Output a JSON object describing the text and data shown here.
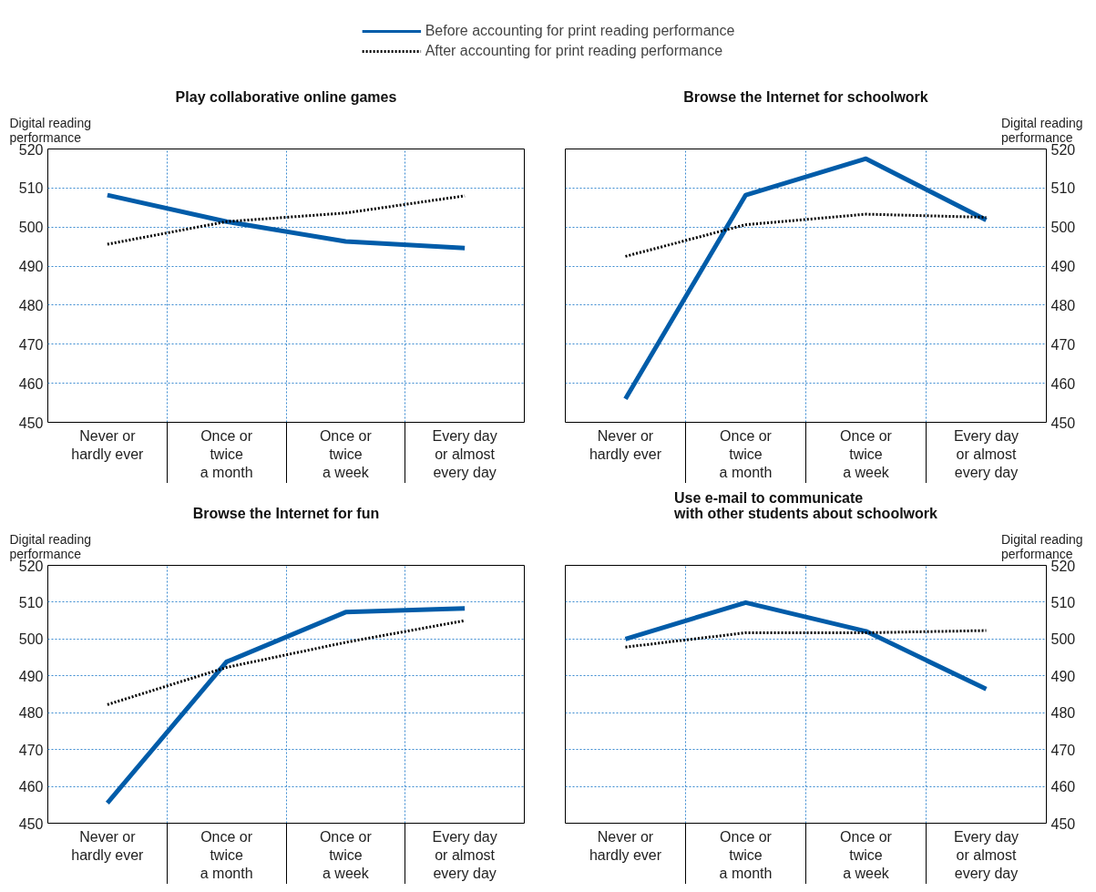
{
  "chart_data": [
    {
      "type": "line",
      "title": "Play collaborative online games",
      "ylabel": "Digital reading\nperformance",
      "categories": [
        "Never or\nhardly ever",
        "Once or\ntwice\na month",
        "Once or\ntwice\na week",
        "Every day\nor almost\nevery day"
      ],
      "ylim": [
        450,
        520
      ],
      "yticks": [
        450,
        460,
        470,
        480,
        490,
        500,
        510,
        520
      ],
      "grid": true,
      "legend": "top",
      "series": [
        {
          "name": "Before accounting for print reading performance",
          "color": "#005ca9",
          "line_style": "solid",
          "values": [
            508.2,
            501.4,
            496.3,
            494.6
          ]
        },
        {
          "name": "After accounting for print reading performance",
          "color": "#000000",
          "line_style": "dotted",
          "values": [
            495.6,
            501.4,
            503.6,
            508.0
          ]
        }
      ]
    },
    {
      "type": "line",
      "title": "Browse the Internet for schoolwork",
      "ylabel": "Digital reading\nperformance",
      "categories": [
        "Never or\nhardly ever",
        "Once or\ntwice\na month",
        "Once or\ntwice\na week",
        "Every day\nor almost\nevery day"
      ],
      "ylim": [
        450,
        520
      ],
      "yticks": [
        450,
        460,
        470,
        480,
        490,
        500,
        510,
        520
      ],
      "grid": true,
      "series": [
        {
          "color": "#005ca9",
          "line_style": "solid",
          "values": [
            456.0,
            508.2,
            517.5,
            501.8
          ]
        },
        {
          "color": "#000000",
          "line_style": "dotted",
          "values": [
            492.5,
            500.6,
            503.3,
            502.5
          ]
        }
      ]
    },
    {
      "type": "line",
      "title": "Browse the Internet for fun",
      "ylabel": "Digital reading\nperformance",
      "categories": [
        "Never or\nhardly ever",
        "Once or\ntwice\na month",
        "Once or\ntwice\na week",
        "Every day\nor almost\nevery day"
      ],
      "ylim": [
        450,
        520
      ],
      "yticks": [
        450,
        460,
        470,
        480,
        490,
        500,
        510,
        520
      ],
      "grid": true,
      "series": [
        {
          "color": "#005ca9",
          "line_style": "solid",
          "values": [
            455.5,
            493.8,
            507.3,
            508.3
          ]
        },
        {
          "color": "#000000",
          "line_style": "dotted",
          "values": [
            482.2,
            492.3,
            499.1,
            505.0
          ]
        }
      ]
    },
    {
      "type": "line",
      "title": "Use e-mail to communicate\nwith other students about schoolwork",
      "ylabel": "Digital reading\nperformance",
      "categories": [
        "Never or\nhardly ever",
        "Once or\ntwice\na month",
        "Once or\ntwice\na week",
        "Every day\nor almost\nevery day"
      ],
      "ylim": [
        450,
        520
      ],
      "yticks": [
        450,
        460,
        470,
        480,
        490,
        500,
        510,
        520
      ],
      "grid": true,
      "series": [
        {
          "color": "#005ca9",
          "line_style": "solid",
          "values": [
            500.0,
            509.9,
            502.1,
            486.4
          ]
        },
        {
          "color": "#000000",
          "line_style": "dotted",
          "values": [
            497.8,
            501.7,
            501.7,
            502.3
          ]
        }
      ]
    }
  ]
}
